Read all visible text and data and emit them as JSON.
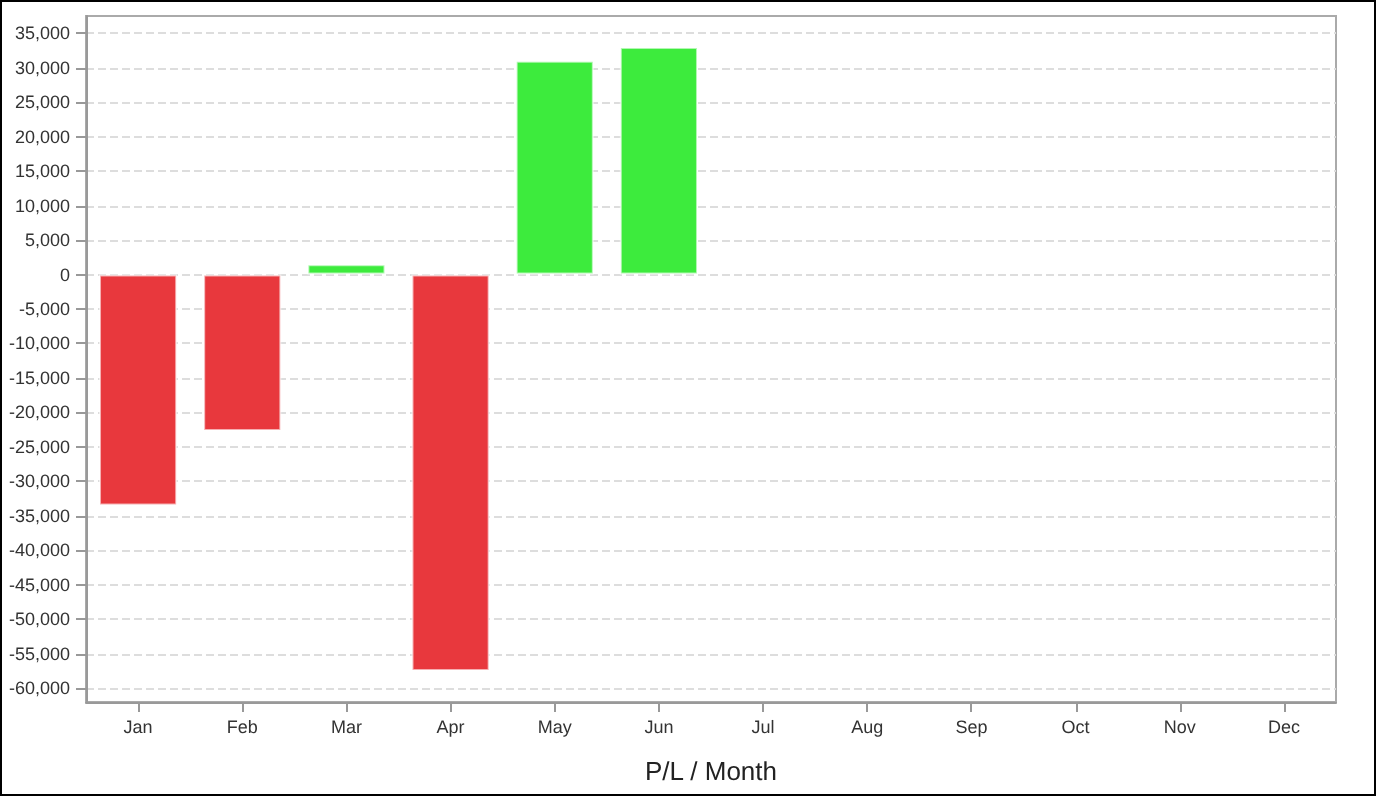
{
  "chart_data": {
    "type": "bar",
    "xlabel": "P/L / Month",
    "categories": [
      "Jan",
      "Feb",
      "Mar",
      "Apr",
      "May",
      "Jun",
      "Jul",
      "Aug",
      "Sep",
      "Oct",
      "Nov",
      "Dec"
    ],
    "values": [
      -33500,
      -22700,
      1500,
      -57500,
      31000,
      33000,
      null,
      null,
      null,
      null,
      null,
      null
    ],
    "colors": [
      "#e8383d",
      "#e8383d",
      "#3deb3d",
      "#e8383d",
      "#3deb3d",
      "#3deb3d",
      null,
      null,
      null,
      null,
      null,
      null
    ],
    "ylim": [
      -62000,
      37500
    ],
    "yticks": [
      {
        "value": -60000,
        "label": "-60,000"
      },
      {
        "value": -55000,
        "label": "-55,000"
      },
      {
        "value": -50000,
        "label": "-50,000"
      },
      {
        "value": -45000,
        "label": "-45,000"
      },
      {
        "value": -40000,
        "label": "-40,000"
      },
      {
        "value": -35000,
        "label": "-35,000"
      },
      {
        "value": -30000,
        "label": "-30,000"
      },
      {
        "value": -25000,
        "label": "-25,000"
      },
      {
        "value": -20000,
        "label": "-20,000"
      },
      {
        "value": -15000,
        "label": "-15,000"
      },
      {
        "value": -10000,
        "label": "-10,000"
      },
      {
        "value": -5000,
        "label": "-5,000"
      },
      0,
      {
        "value": 5000,
        "label": "5,000"
      },
      {
        "value": 10000,
        "label": "10,000"
      },
      {
        "value": 15000,
        "label": "15,000"
      },
      {
        "value": 20000,
        "label": "20,000"
      },
      {
        "value": 25000,
        "label": "25,000"
      },
      {
        "value": 30000,
        "label": "30,000"
      },
      {
        "value": 35000,
        "label": "35,000"
      }
    ],
    "grid": "y"
  }
}
